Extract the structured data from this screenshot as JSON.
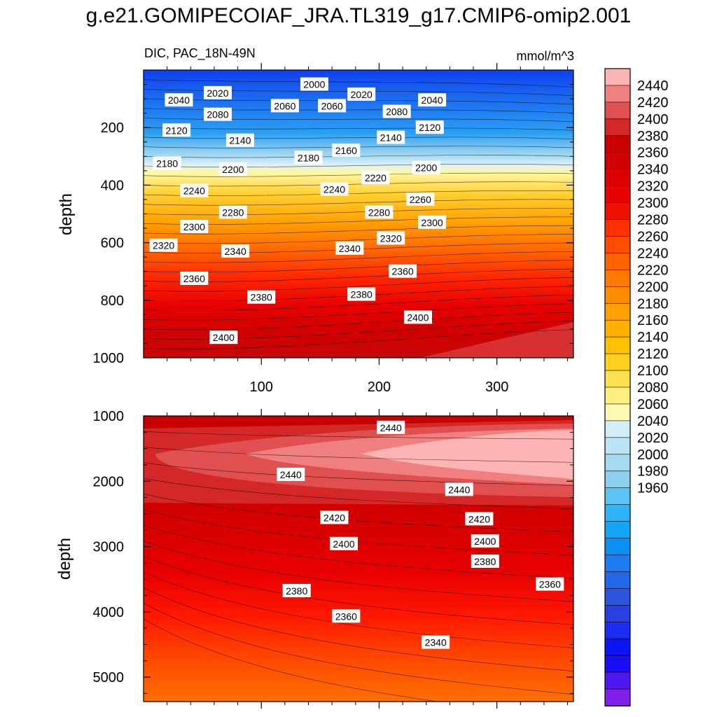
{
  "figure": {
    "title": "g.e21.GOMIPECOIAF_JRA.TL319_g17.CMIP6-omip2.001",
    "variable_label": "DIC, PAC_18N-49N",
    "units": "mmol/m^3"
  },
  "chart_data": [
    {
      "type": "heatmap",
      "panel": "upper",
      "ylabel": "depth",
      "xlabel": "",
      "x_ticks": [
        100,
        200,
        300
      ],
      "y_ticks": [
        200,
        400,
        600,
        800,
        1000
      ],
      "xlim": [
        0,
        365
      ],
      "ylim": [
        0,
        1000
      ],
      "y_reversed": true,
      "contour_labels": [
        {
          "value": 2000,
          "x": 145,
          "depth": 50
        },
        {
          "value": 2020,
          "x": 63,
          "depth": 80
        },
        {
          "value": 2020,
          "x": 185,
          "depth": 85
        },
        {
          "value": 2040,
          "x": 30,
          "depth": 105
        },
        {
          "value": 2040,
          "x": 245,
          "depth": 105
        },
        {
          "value": 2060,
          "x": 120,
          "depth": 125
        },
        {
          "value": 2060,
          "x": 160,
          "depth": 125
        },
        {
          "value": 2080,
          "x": 63,
          "depth": 155
        },
        {
          "value": 2080,
          "x": 215,
          "depth": 145
        },
        {
          "value": 2120,
          "x": 28,
          "depth": 210
        },
        {
          "value": 2120,
          "x": 243,
          "depth": 200
        },
        {
          "value": 2140,
          "x": 82,
          "depth": 245
        },
        {
          "value": 2140,
          "x": 210,
          "depth": 235
        },
        {
          "value": 2160,
          "x": 172,
          "depth": 280
        },
        {
          "value": 2180,
          "x": 20,
          "depth": 325
        },
        {
          "value": 2180,
          "x": 140,
          "depth": 305
        },
        {
          "value": 2200,
          "x": 76,
          "depth": 345
        },
        {
          "value": 2200,
          "x": 240,
          "depth": 340
        },
        {
          "value": 2220,
          "x": 197,
          "depth": 375
        },
        {
          "value": 2240,
          "x": 43,
          "depth": 420
        },
        {
          "value": 2240,
          "x": 162,
          "depth": 415
        },
        {
          "value": 2260,
          "x": 235,
          "depth": 450
        },
        {
          "value": 2280,
          "x": 76,
          "depth": 495
        },
        {
          "value": 2280,
          "x": 200,
          "depth": 495
        },
        {
          "value": 2300,
          "x": 43,
          "depth": 545
        },
        {
          "value": 2300,
          "x": 245,
          "depth": 530
        },
        {
          "value": 2320,
          "x": 17,
          "depth": 610
        },
        {
          "value": 2320,
          "x": 210,
          "depth": 585
        },
        {
          "value": 2340,
          "x": 78,
          "depth": 630
        },
        {
          "value": 2340,
          "x": 175,
          "depth": 620
        },
        {
          "value": 2360,
          "x": 43,
          "depth": 725
        },
        {
          "value": 2360,
          "x": 220,
          "depth": 700
        },
        {
          "value": 2380,
          "x": 100,
          "depth": 790
        },
        {
          "value": 2380,
          "x": 185,
          "depth": 780
        },
        {
          "value": 2400,
          "x": 68,
          "depth": 930
        },
        {
          "value": 2400,
          "x": 233,
          "depth": 860
        }
      ]
    },
    {
      "type": "heatmap",
      "panel": "lower",
      "ylabel": "depth",
      "xlabel": "",
      "x_ticks": [
        100,
        200,
        300
      ],
      "y_ticks": [
        1000,
        2000,
        3000,
        4000,
        5000
      ],
      "xlim": [
        0,
        365
      ],
      "ylim": [
        1000,
        5375
      ],
      "y_reversed": true,
      "contour_labels": [
        {
          "value": 2440,
          "x": 210,
          "depth": 1180
        },
        {
          "value": 2440,
          "x": 125,
          "depth": 1900
        },
        {
          "value": 2440,
          "x": 268,
          "depth": 2130
        },
        {
          "value": 2420,
          "x": 162,
          "depth": 2560
        },
        {
          "value": 2420,
          "x": 285,
          "depth": 2580
        },
        {
          "value": 2400,
          "x": 170,
          "depth": 2960
        },
        {
          "value": 2400,
          "x": 290,
          "depth": 2920
        },
        {
          "value": 2380,
          "x": 290,
          "depth": 3230
        },
        {
          "value": 2380,
          "x": 130,
          "depth": 3680
        },
        {
          "value": 2360,
          "x": 345,
          "depth": 3580
        },
        {
          "value": 2360,
          "x": 172,
          "depth": 4070
        },
        {
          "value": 2340,
          "x": 248,
          "depth": 4470
        }
      ]
    }
  ],
  "colorbar": {
    "tick_labels": [
      2440,
      2420,
      2400,
      2380,
      2360,
      2340,
      2320,
      2300,
      2280,
      2260,
      2240,
      2220,
      2200,
      2180,
      2160,
      2140,
      2120,
      2100,
      2080,
      2060,
      2040,
      2020,
      2000,
      1980,
      1960
    ],
    "colors": [
      "#ffb4b4",
      "#f08080",
      "#e05050",
      "#d42828",
      "#c80000",
      "#d00000",
      "#dc0000",
      "#e60000",
      "#f01000",
      "#ff3000",
      "#ff4c00",
      "#ff6400",
      "#ff7800",
      "#ff8c00",
      "#ffa000",
      "#ffb000",
      "#ffc000",
      "#ffd020",
      "#ffe050",
      "#ffee80",
      "#fff8b0",
      "#d4eef8",
      "#bce4f4",
      "#a4daf0",
      "#8cd0ee",
      "#5cc4f4",
      "#30b4f8",
      "#14a4f8",
      "#0c90f4",
      "#1c7cf0",
      "#2468e8",
      "#2c54dc",
      "#2840e0",
      "#1c2cf0",
      "#0c14f8",
      "#1c0cf8",
      "#5018f0",
      "#8020e8"
    ]
  }
}
